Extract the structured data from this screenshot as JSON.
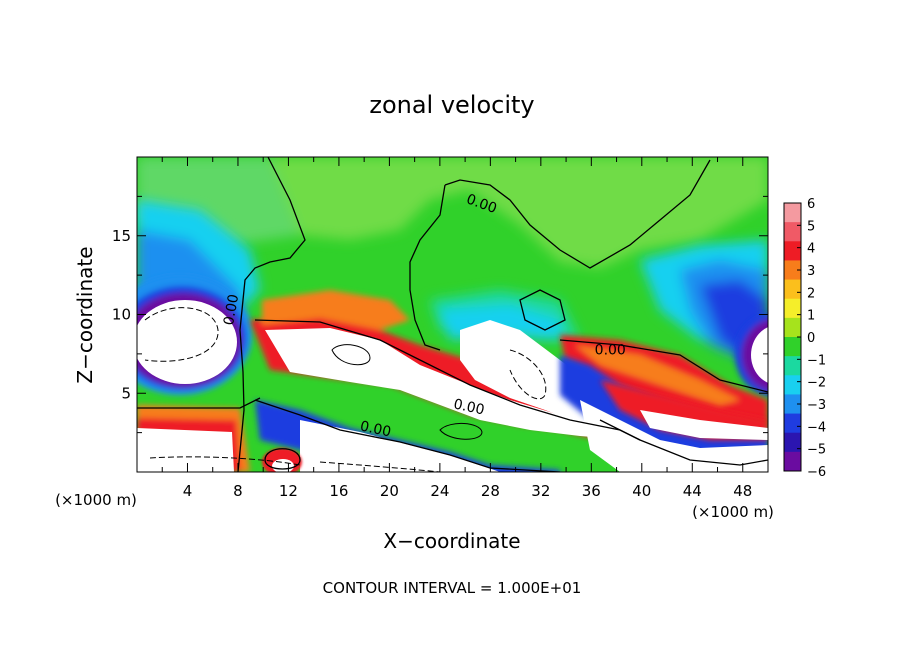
{
  "chart_data": {
    "type": "heatmap",
    "title": "zonal velocity",
    "xlabel": "X−coordinate",
    "ylabel": "Z−coordinate",
    "x_unit_label": "(×1000 m)",
    "y_unit_label": "(×1000 m)",
    "xlim": [
      0,
      50
    ],
    "ylim": [
      0,
      20
    ],
    "x_ticks": [
      4,
      8,
      12,
      16,
      20,
      24,
      28,
      32,
      36,
      40,
      44,
      48
    ],
    "y_ticks": [
      5,
      10,
      15
    ],
    "colorbar": {
      "ticks": [
        "6",
        "5",
        "4",
        "3",
        "2",
        "1",
        "0",
        "−1",
        "−2",
        "−3",
        "−4",
        "−5",
        "−6"
      ],
      "range": [
        -6,
        6
      ],
      "colors": [
        "#f49aa0",
        "#f05a66",
        "#ee1c25",
        "#f77d1b",
        "#fbbf1c",
        "#f5ee2a",
        "#a6e31c",
        "#30d12a",
        "#1bd9a0",
        "#19d0f0",
        "#1e90f0",
        "#1f3ce0",
        "#2b15b0",
        "#6a0ca0"
      ],
      "out_of_range_color": "#ffffff"
    },
    "contour_labels": [
      {
        "text": "0.00",
        "x": 27.3,
        "y": 17.0
      },
      {
        "text": "0.00",
        "x": 7.5,
        "y": 10.3
      },
      {
        "text": "0.00",
        "x": 37.5,
        "y": 7.7
      },
      {
        "text": "0.00",
        "x": 26.3,
        "y": 4.1
      },
      {
        "text": "0.00",
        "x": 18.9,
        "y": 2.7
      }
    ],
    "contour_interval": "1.000E+01",
    "footer_label": "CONTOUR INTERVAL = 1.000E+01"
  }
}
